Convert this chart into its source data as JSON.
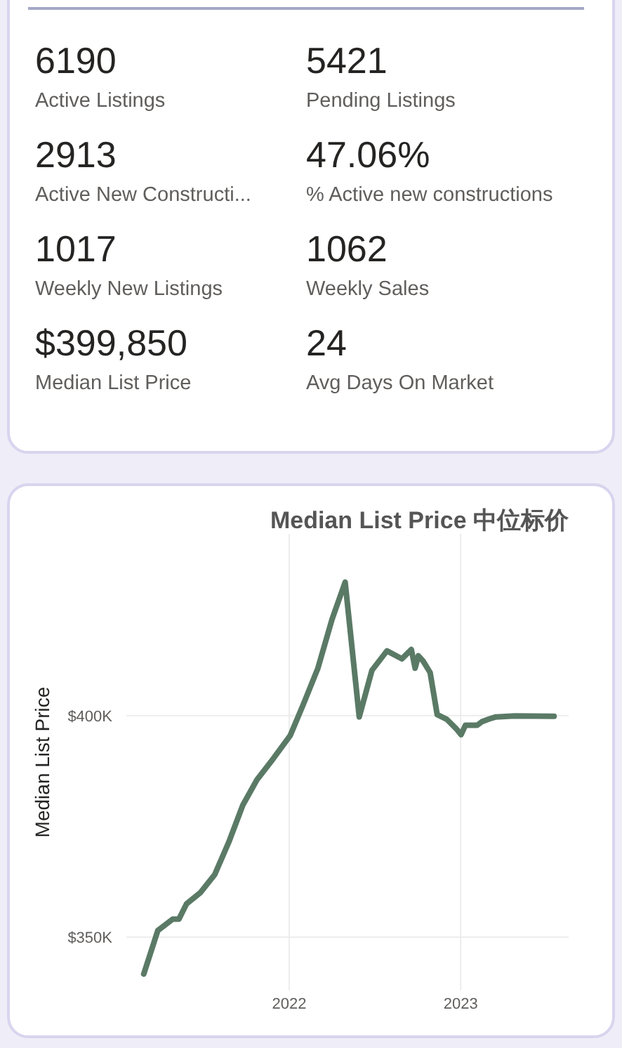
{
  "chart_data": [
    {
      "type": "other",
      "annotations": [
        "6190",
        "Active Listings",
        "5421",
        "Pending Listings",
        "2913",
        "Active New Constructi...",
        "47.06%",
        "% Active new constructions",
        "1017",
        "Weekly New Listings",
        "1062",
        "Weekly Sales",
        "$399,850",
        "Median List Price",
        "24",
        "Avg Days On Market"
      ]
    },
    {
      "type": "line",
      "title": "Median List Price  中位标价",
      "ylabel": "Median List Price",
      "x": [
        "2021-02-25",
        "2021-03-27",
        "2021-04-28",
        "2021-05-11",
        "2021-05-27",
        "2021-06-26",
        "2021-07-26",
        "2021-08-25",
        "2021-09-24",
        "2021-10-24",
        "2021-11-28",
        "2022-01-03",
        "2022-02-01",
        "2022-03-03",
        "2022-04-02",
        "2022-04-30",
        "2022-05-30",
        "2022-06-26",
        "2022-07-28",
        "2022-08-29",
        "2022-09-18",
        "2022-09-26",
        "2022-10-03",
        "2022-10-13",
        "2022-10-28",
        "2022-11-12",
        "2022-12-02",
        "2022-12-22",
        "2023-01-02",
        "2023-01-11",
        "2023-02-05",
        "2023-02-15",
        "2023-03-02",
        "2023-03-17",
        "2023-04-26",
        "2023-07-19"
      ],
      "series": [
        {
          "color": "#5a7a66",
          "values": [
            341700,
            351500,
            354100,
            354100,
            357500,
            360100,
            364100,
            371400,
            379800,
            385500,
            390300,
            395500,
            402800,
            410700,
            421700,
            430100,
            399700,
            410200,
            414600,
            412800,
            414900,
            410700,
            413500,
            412300,
            409700,
            400200,
            399200,
            397100,
            395700,
            397800,
            397800,
            398600,
            399200,
            399700,
            399900,
            399850
          ]
        }
      ],
      "xlim": [
        "2021-01-19",
        "2023-08-19"
      ],
      "xticks": [
        "2022",
        "2023"
      ],
      "ylim": [
        338000,
        441000
      ],
      "yticks": [
        {
          "value": 350000,
          "label": "$350K"
        },
        {
          "value": 400000,
          "label": "$400K"
        }
      ],
      "grid": true
    }
  ]
}
